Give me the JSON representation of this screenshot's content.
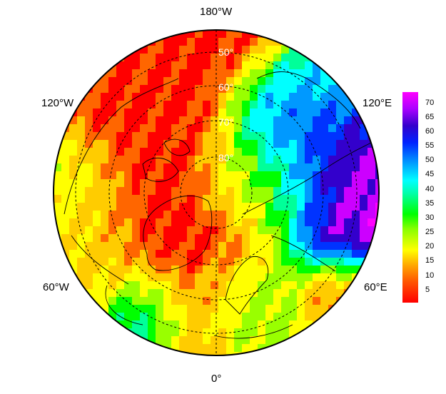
{
  "map": {
    "projection": "north-polar-stereographic",
    "longitude_labels": {
      "top": "180°W",
      "upper_left": "120°W",
      "upper_right": "120°E",
      "lower_left": "60°W",
      "lower_right": "60°E",
      "bottom": "0°"
    },
    "latitude_labels": [
      "50°",
      "60°",
      "70°",
      "80°"
    ],
    "colorbar": {
      "ticks": [
        "70",
        "65",
        "60",
        "55",
        "50",
        "45",
        "40",
        "35",
        "30",
        "25",
        "20",
        "15",
        "10",
        "5"
      ],
      "min": 0,
      "max": 74,
      "colors": [
        "#ff0000",
        "#ff6600",
        "#ffcc00",
        "#ffff00",
        "#99ff00",
        "#00ff00",
        "#00ff99",
        "#00ffff",
        "#0099ff",
        "#0033ff",
        "#3300cc",
        "#cc00ff",
        "#ff00ff"
      ]
    }
  }
}
